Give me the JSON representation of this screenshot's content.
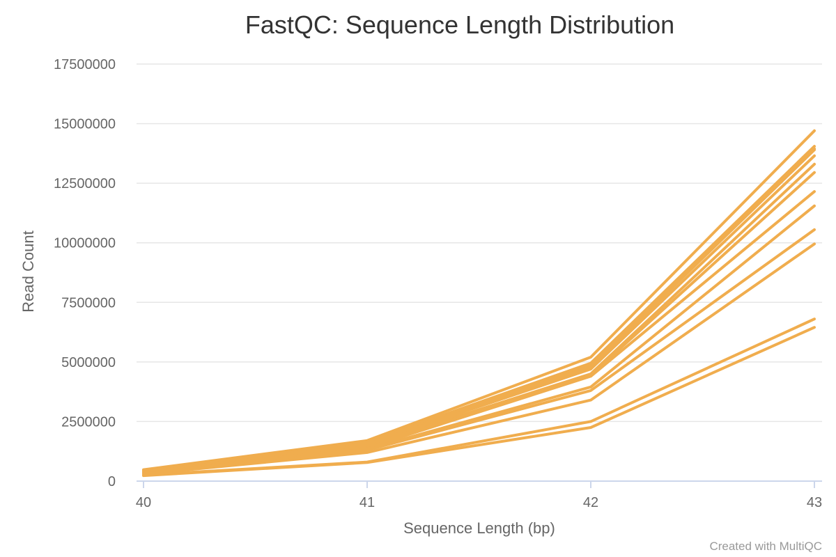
{
  "chart_data": {
    "type": "line",
    "title": "FastQC: Sequence Length Distribution",
    "xlabel": "Sequence Length (bp)",
    "ylabel": "Read Count",
    "x": [
      40,
      41,
      42,
      43
    ],
    "xlim": [
      40,
      43
    ],
    "ylim": [
      0,
      17500000
    ],
    "y_ticks": [
      "0",
      "2500000",
      "5000000",
      "7500000",
      "10000000",
      "12500000",
      "15000000",
      "17500000"
    ],
    "x_ticks": [
      "40",
      "41",
      "42",
      "43"
    ],
    "grid": true,
    "legend": "none",
    "series_color": "#f0ad4e",
    "series": [
      {
        "values": [
          480000,
          1700000,
          5200000,
          14700000
        ]
      },
      {
        "values": [
          450000,
          1650000,
          4950000,
          14050000
        ]
      },
      {
        "values": [
          430000,
          1620000,
          4900000,
          13950000
        ]
      },
      {
        "values": [
          420000,
          1600000,
          4800000,
          13900000
        ]
      },
      {
        "values": [
          400000,
          1550000,
          4700000,
          13650000
        ]
      },
      {
        "values": [
          390000,
          1500000,
          4500000,
          13300000
        ]
      },
      {
        "values": [
          380000,
          1450000,
          4450000,
          12950000
        ]
      },
      {
        "values": [
          360000,
          1400000,
          4400000,
          12150000
        ]
      },
      {
        "values": [
          330000,
          1350000,
          3950000,
          11550000
        ]
      },
      {
        "values": [
          320000,
          1300000,
          3800000,
          10550000
        ]
      },
      {
        "values": [
          300000,
          1200000,
          3400000,
          9950000
        ]
      },
      {
        "values": [
          260000,
          800000,
          2500000,
          6800000
        ]
      },
      {
        "values": [
          230000,
          780000,
          2250000,
          6450000
        ]
      }
    ]
  },
  "credit": "Created with MultiQC"
}
